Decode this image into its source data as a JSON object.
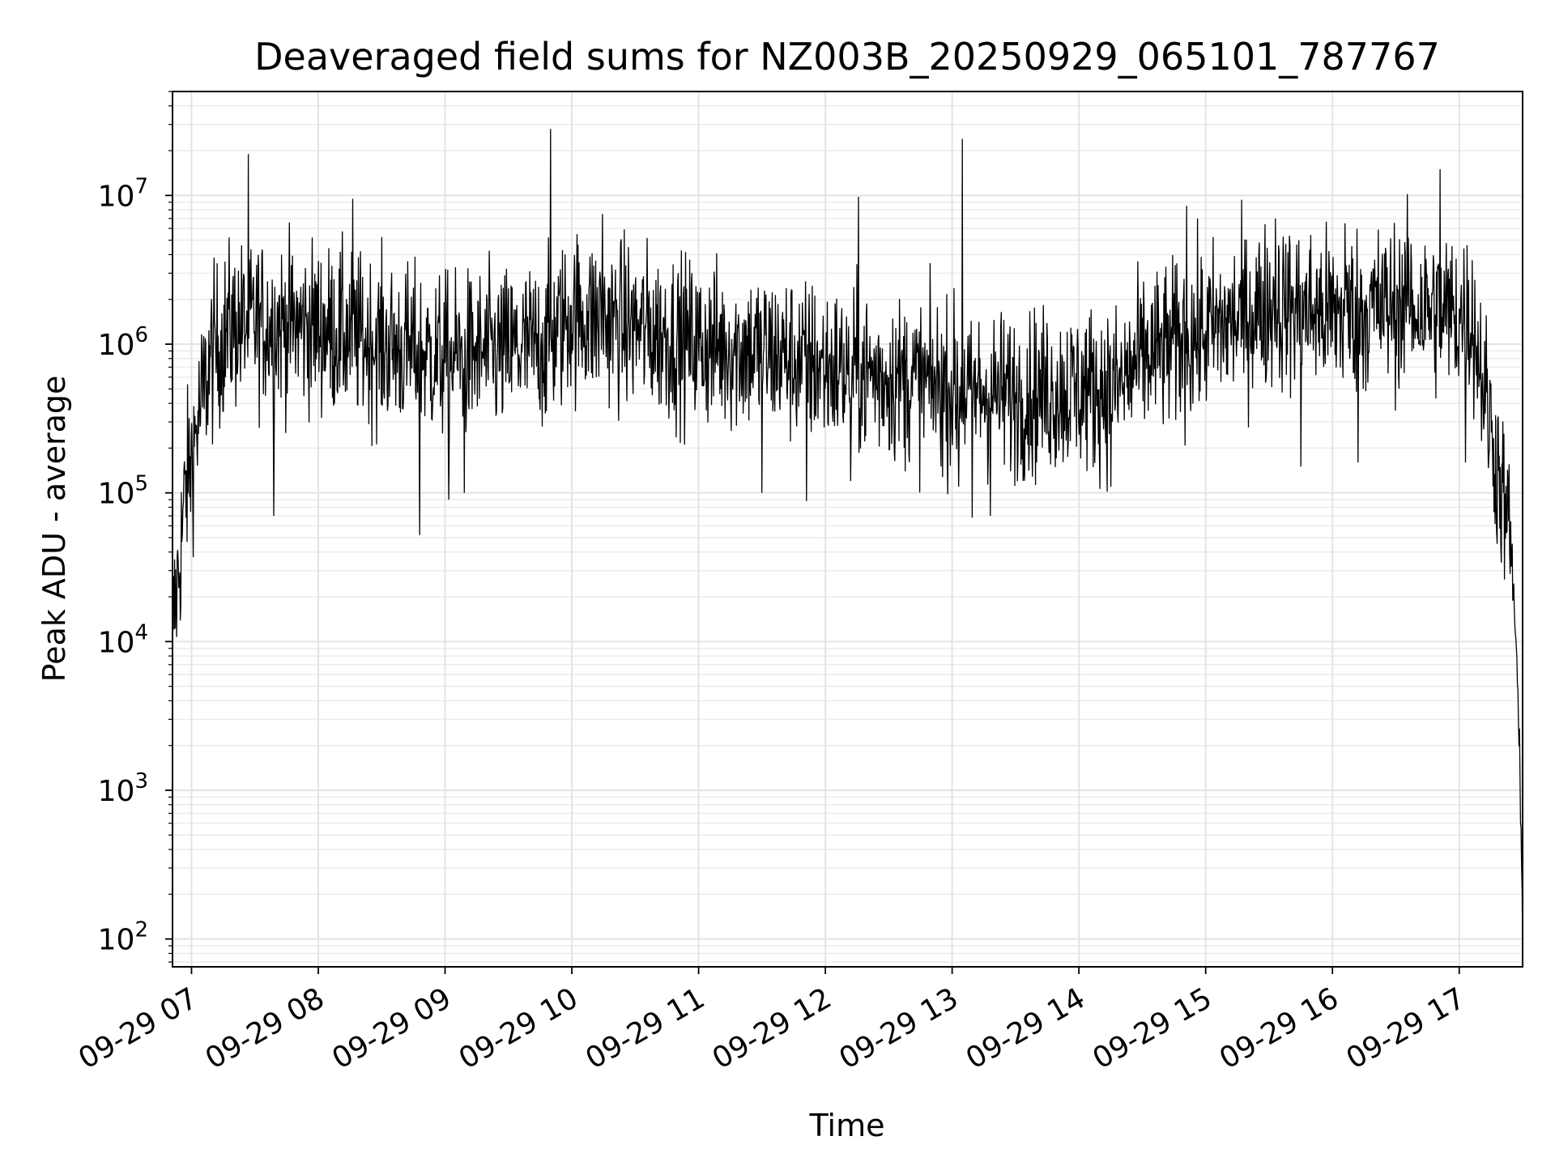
{
  "chart_data": {
    "type": "line",
    "title": "Deaveraged field sums for NZ003B_20250929_065101_787767",
    "xlabel": "Time",
    "ylabel": "Peak ADU - average",
    "yscale": "log",
    "grid": true,
    "xlim_hours": [
      6.85,
      17.5
    ],
    "ylim": [
      65,
      50000000
    ],
    "x_ticks": [
      {
        "hour": 7,
        "label": "09-29 07"
      },
      {
        "hour": 8,
        "label": "09-29 08"
      },
      {
        "hour": 9,
        "label": "09-29 09"
      },
      {
        "hour": 10,
        "label": "09-29 10"
      },
      {
        "hour": 11,
        "label": "09-29 11"
      },
      {
        "hour": 12,
        "label": "09-29 12"
      },
      {
        "hour": 13,
        "label": "09-29 13"
      },
      {
        "hour": 14,
        "label": "09-29 14"
      },
      {
        "hour": 15,
        "label": "09-29 15"
      },
      {
        "hour": 16,
        "label": "09-29 16"
      },
      {
        "hour": 17,
        "label": "09-29 17"
      }
    ],
    "y_ticks": [
      {
        "exp": 2,
        "base": "10",
        "sup": "2"
      },
      {
        "exp": 3,
        "base": "10",
        "sup": "3"
      },
      {
        "exp": 4,
        "base": "10",
        "sup": "4"
      },
      {
        "exp": 5,
        "base": "10",
        "sup": "5"
      },
      {
        "exp": 6,
        "base": "10",
        "sup": "6"
      },
      {
        "exp": 7,
        "base": "10",
        "sup": "7"
      }
    ],
    "series": [
      {
        "name": "field sum",
        "color": "#000000",
        "baseline": [
          [
            6.85,
            12000
          ],
          [
            6.9,
            30000
          ],
          [
            6.95,
            100000
          ],
          [
            7.05,
            300000
          ],
          [
            7.15,
            800000
          ],
          [
            7.3,
            1300000
          ],
          [
            7.5,
            1400000
          ],
          [
            8.0,
            1300000
          ],
          [
            8.5,
            1000000
          ],
          [
            9.0,
            800000
          ],
          [
            9.5,
            900000
          ],
          [
            9.8,
            1000000
          ],
          [
            10.0,
            1600000
          ],
          [
            10.5,
            1300000
          ],
          [
            11.0,
            1000000
          ],
          [
            11.5,
            900000
          ],
          [
            12.0,
            700000
          ],
          [
            12.5,
            600000
          ],
          [
            13.0,
            500000
          ],
          [
            13.5,
            450000
          ],
          [
            14.0,
            500000
          ],
          [
            14.3,
            500000
          ],
          [
            14.5,
            800000
          ],
          [
            15.0,
            1200000
          ],
          [
            15.5,
            1800000
          ],
          [
            16.0,
            1600000
          ],
          [
            16.5,
            1800000
          ],
          [
            16.8,
            1700000
          ],
          [
            17.1,
            1500000
          ],
          [
            17.2,
            500000
          ],
          [
            17.3,
            150000
          ],
          [
            17.4,
            50000
          ],
          [
            17.45,
            10000
          ],
          [
            17.48,
            1000
          ],
          [
            17.5,
            120
          ]
        ],
        "spikes": [
          [
            7.45,
            19000000
          ],
          [
            8.27,
            9500000
          ],
          [
            9.83,
            28000000
          ],
          [
            10.24,
            7500000
          ],
          [
            12.26,
            9800000
          ],
          [
            13.08,
            24000000
          ],
          [
            14.85,
            8500000
          ],
          [
            15.75,
            9500000
          ],
          [
            16.1,
            6500000
          ],
          [
            16.6,
            5200000
          ],
          [
            16.85,
            15000000
          ],
          [
            15.55,
            7000000
          ]
        ],
        "dips": [
          [
            7.65,
            70000
          ],
          [
            8.8,
            52000
          ],
          [
            9.03,
            90000
          ],
          [
            9.15,
            100000
          ],
          [
            11.5,
            100000
          ],
          [
            11.85,
            88000
          ],
          [
            12.2,
            120000
          ],
          [
            13.05,
            110000
          ],
          [
            13.16,
            68000
          ],
          [
            13.3,
            70000
          ],
          [
            14.25,
            110000
          ],
          [
            15.75,
            150000
          ],
          [
            16.2,
            160000
          ],
          [
            17.05,
            160000
          ]
        ]
      }
    ]
  }
}
